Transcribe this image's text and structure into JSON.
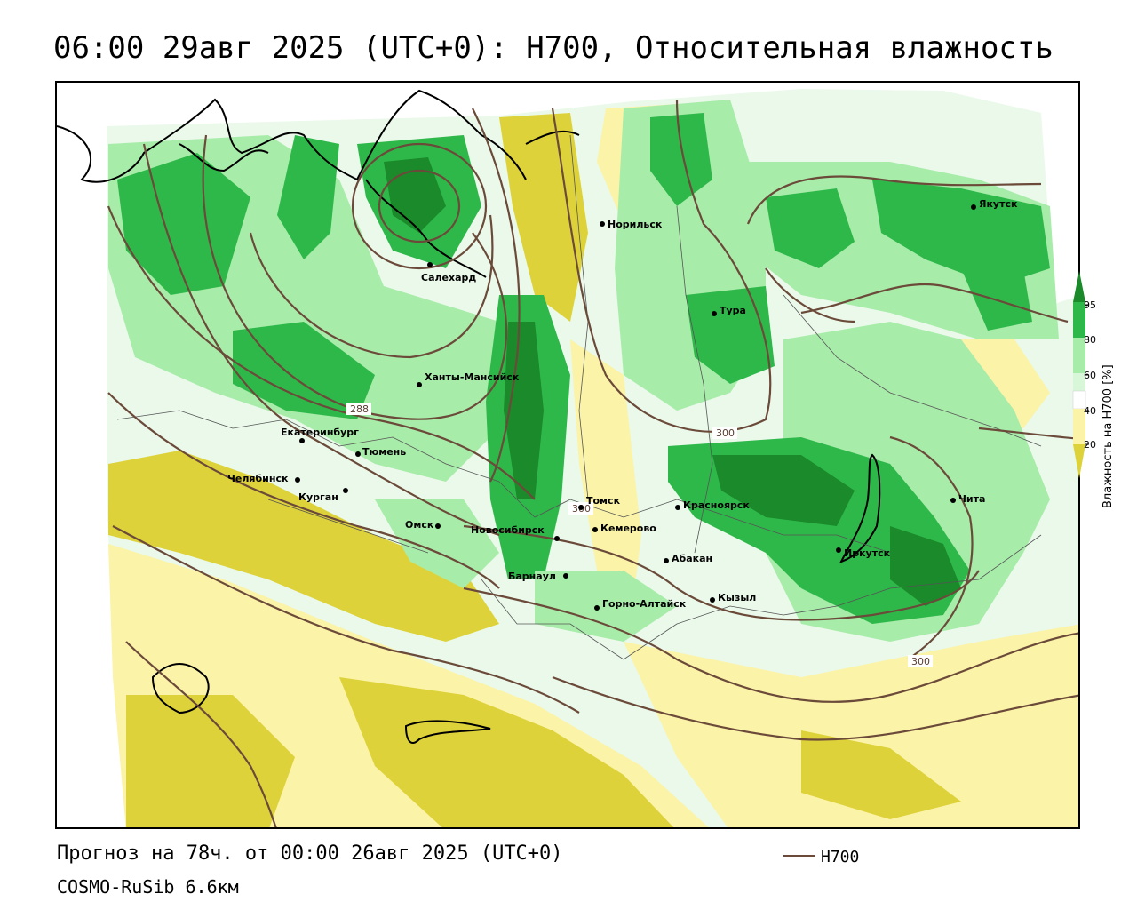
{
  "title": "06:00 29авг 2025 (UTC+0): H700, Относительная влажность",
  "footer": {
    "forecast": "Прогноз на 78ч. от 00:00 26авг 2025 (UTC+0)",
    "model": "COSMO-RuSib 6.6км",
    "line_legend": "H700"
  },
  "colorbar": {
    "title": "Влажность на H700 [%]",
    "ticks": [
      "95",
      "80",
      "60",
      "40",
      "20"
    ],
    "colors": {
      "gt95": "#1a8a2a",
      "80_95": "#2fb84a",
      "60_80": "#a8ecaa",
      "50_60": "#d8f6d8",
      "40_50": "#ffffff",
      "20_40": "#fbf3a8",
      "lt20": "#ded23a"
    }
  },
  "contour_labels": [
    "288",
    "300",
    "300",
    "300"
  ],
  "cities": [
    {
      "name": "Норильск"
    },
    {
      "name": "Якутск"
    },
    {
      "name": "Салехард"
    },
    {
      "name": "Тура"
    },
    {
      "name": "Ханты-Мансийск"
    },
    {
      "name": "Екатеринбург"
    },
    {
      "name": "Тюмень"
    },
    {
      "name": "Челябинск"
    },
    {
      "name": "Курган"
    },
    {
      "name": "Омск"
    },
    {
      "name": "Новосибирск"
    },
    {
      "name": "Томск"
    },
    {
      "name": "Кемерово"
    },
    {
      "name": "Красноярск"
    },
    {
      "name": "Абакан"
    },
    {
      "name": "Барнаул"
    },
    {
      "name": "Горно-Алтайск"
    },
    {
      "name": "Кызыл"
    },
    {
      "name": "Иркутск"
    },
    {
      "name": "Чита"
    }
  ]
}
